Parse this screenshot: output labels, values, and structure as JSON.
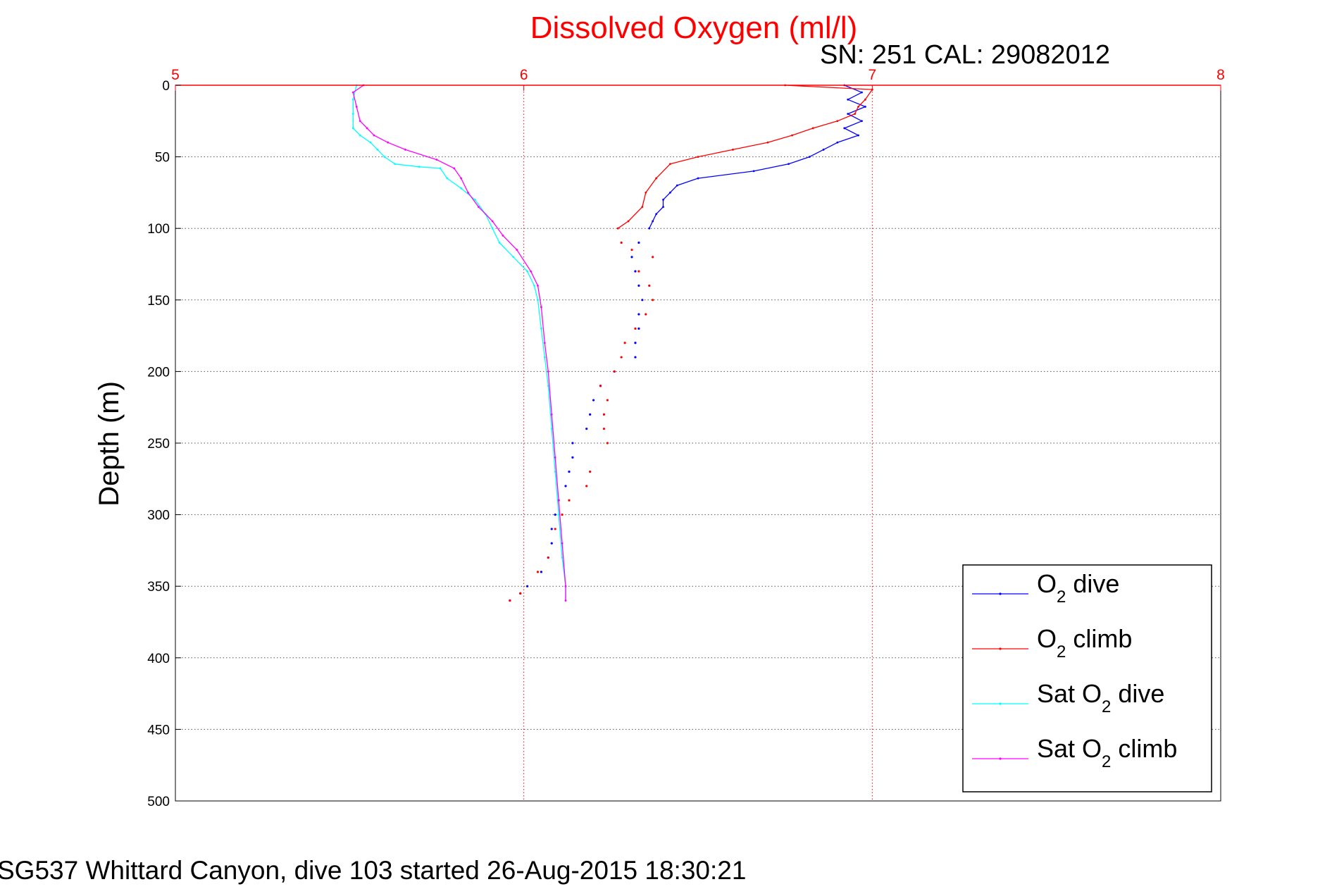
{
  "chart_data": {
    "type": "line",
    "title": "Dissolved Oxygen (ml/l)",
    "subtitle": "SN: 251  CAL: 29082012",
    "ylabel": "Depth (m)",
    "caption": "SG537 Whittard Canyon, dive 103 started 26-Aug-2015 18:30:21",
    "xlim": [
      5,
      8
    ],
    "ylim": [
      0,
      500
    ],
    "y_reversed": true,
    "x_axis_position": "top",
    "x_ticks": [
      "5",
      "6",
      "7",
      "8"
    ],
    "y_ticks": [
      "0",
      "50",
      "100",
      "150",
      "200",
      "250",
      "300",
      "350",
      "400",
      "450",
      "500"
    ],
    "grid": true,
    "legend_position": "bottom-right",
    "series": [
      {
        "name": "O2 dive",
        "legend_main": "O",
        "legend_sub": "2",
        "legend_rest": " dive",
        "color": "#0000ff",
        "style": "line-then-dots",
        "line_points": [
          [
            6.92,
            0
          ],
          [
            6.97,
            5
          ],
          [
            6.93,
            10
          ],
          [
            6.98,
            15
          ],
          [
            6.93,
            20
          ],
          [
            6.97,
            25
          ],
          [
            6.92,
            30
          ],
          [
            6.96,
            35
          ],
          [
            6.9,
            40
          ],
          [
            6.86,
            45
          ],
          [
            6.82,
            50
          ],
          [
            6.76,
            55
          ],
          [
            6.66,
            60
          ],
          [
            6.5,
            65
          ],
          [
            6.44,
            70
          ],
          [
            6.42,
            75
          ],
          [
            6.4,
            80
          ],
          [
            6.4,
            85
          ],
          [
            6.38,
            90
          ],
          [
            6.37,
            95
          ],
          [
            6.36,
            100
          ]
        ],
        "dot_points": [
          [
            6.33,
            110
          ],
          [
            6.31,
            120
          ],
          [
            6.32,
            130
          ],
          [
            6.33,
            140
          ],
          [
            6.34,
            150
          ],
          [
            6.33,
            160
          ],
          [
            6.33,
            170
          ],
          [
            6.32,
            180
          ],
          [
            6.32,
            190
          ],
          [
            6.26,
            200
          ],
          [
            6.22,
            210
          ],
          [
            6.2,
            220
          ],
          [
            6.19,
            230
          ],
          [
            6.18,
            240
          ],
          [
            6.14,
            250
          ],
          [
            6.14,
            260
          ],
          [
            6.13,
            270
          ],
          [
            6.12,
            280
          ],
          [
            6.1,
            290
          ],
          [
            6.09,
            300
          ],
          [
            6.08,
            310
          ],
          [
            6.08,
            320
          ],
          [
            6.07,
            330
          ],
          [
            6.05,
            340
          ],
          [
            6.01,
            350
          ],
          [
            5.99,
            355
          ],
          [
            5.96,
            360
          ]
        ]
      },
      {
        "name": "O2 climb",
        "legend_main": "O",
        "legend_sub": "2",
        "legend_rest": " climb",
        "color": "#ff0000",
        "style": "line-then-dots",
        "line_points": [
          [
            6.75,
            0
          ],
          [
            7.0,
            3
          ],
          [
            6.98,
            10
          ],
          [
            6.96,
            15
          ],
          [
            6.95,
            20
          ],
          [
            6.9,
            25
          ],
          [
            6.83,
            30
          ],
          [
            6.77,
            35
          ],
          [
            6.7,
            40
          ],
          [
            6.6,
            45
          ],
          [
            6.5,
            50
          ],
          [
            6.42,
            55
          ],
          [
            6.38,
            65
          ],
          [
            6.35,
            75
          ],
          [
            6.34,
            85
          ],
          [
            6.3,
            95
          ],
          [
            6.27,
            100
          ]
        ],
        "dot_points": [
          [
            6.28,
            110
          ],
          [
            6.31,
            115
          ],
          [
            6.37,
            120
          ],
          [
            6.33,
            130
          ],
          [
            6.36,
            140
          ],
          [
            6.37,
            150
          ],
          [
            6.35,
            160
          ],
          [
            6.32,
            170
          ],
          [
            6.29,
            180
          ],
          [
            6.28,
            190
          ],
          [
            6.26,
            200
          ],
          [
            6.22,
            210
          ],
          [
            6.24,
            220
          ],
          [
            6.23,
            230
          ],
          [
            6.23,
            240
          ],
          [
            6.24,
            250
          ],
          [
            6.19,
            270
          ],
          [
            6.18,
            280
          ],
          [
            6.13,
            290
          ],
          [
            6.11,
            300
          ],
          [
            6.09,
            310
          ],
          [
            6.07,
            330
          ],
          [
            6.04,
            340
          ],
          [
            5.99,
            355
          ],
          [
            5.96,
            360
          ]
        ]
      },
      {
        "name": "Sat O2 dive",
        "legend_main": "Sat O",
        "legend_sub": "2",
        "legend_rest": " dive",
        "color": "#00ffff",
        "style": "line",
        "line_points": [
          [
            5.52,
            0
          ],
          [
            5.51,
            10
          ],
          [
            5.51,
            20
          ],
          [
            5.51,
            30
          ],
          [
            5.53,
            35
          ],
          [
            5.56,
            40
          ],
          [
            5.58,
            45
          ],
          [
            5.6,
            50
          ],
          [
            5.63,
            55
          ],
          [
            5.7,
            57
          ],
          [
            5.76,
            58
          ],
          [
            5.78,
            65
          ],
          [
            5.82,
            72
          ],
          [
            5.86,
            80
          ],
          [
            5.89,
            90
          ],
          [
            5.91,
            100
          ],
          [
            5.93,
            110
          ],
          [
            5.97,
            120
          ],
          [
            6.01,
            130
          ],
          [
            6.03,
            140
          ],
          [
            6.04,
            150
          ],
          [
            6.05,
            170
          ],
          [
            6.06,
            190
          ],
          [
            6.07,
            210
          ],
          [
            6.08,
            240
          ],
          [
            6.09,
            270
          ],
          [
            6.1,
            300
          ],
          [
            6.11,
            330
          ],
          [
            6.12,
            350
          ],
          [
            6.12,
            360
          ]
        ]
      },
      {
        "name": "Sat O2 climb",
        "legend_main": "Sat O",
        "legend_sub": "2",
        "legend_rest": " climb",
        "color": "#ff00ff",
        "style": "line",
        "line_points": [
          [
            5.54,
            0
          ],
          [
            5.51,
            5
          ],
          [
            5.52,
            15
          ],
          [
            5.53,
            25
          ],
          [
            5.55,
            30
          ],
          [
            5.57,
            35
          ],
          [
            5.61,
            40
          ],
          [
            5.66,
            45
          ],
          [
            5.75,
            52
          ],
          [
            5.8,
            58
          ],
          [
            5.82,
            65
          ],
          [
            5.84,
            75
          ],
          [
            5.87,
            85
          ],
          [
            5.91,
            95
          ],
          [
            5.94,
            105
          ],
          [
            5.98,
            115
          ],
          [
            6.02,
            130
          ],
          [
            6.04,
            140
          ],
          [
            6.05,
            155
          ],
          [
            6.06,
            180
          ],
          [
            6.07,
            200
          ],
          [
            6.08,
            230
          ],
          [
            6.09,
            260
          ],
          [
            6.1,
            290
          ],
          [
            6.11,
            320
          ],
          [
            6.12,
            350
          ],
          [
            6.12,
            360
          ]
        ]
      }
    ]
  }
}
